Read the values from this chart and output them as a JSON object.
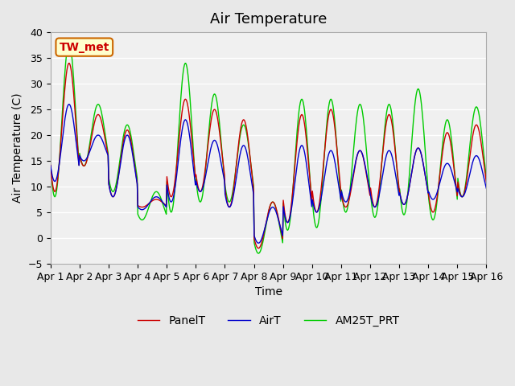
{
  "title": "Air Temperature",
  "ylabel": "Air Temperature (C)",
  "xlabel": "Time",
  "ylim": [
    -5,
    40
  ],
  "yticks": [
    -5,
    0,
    5,
    10,
    15,
    20,
    25,
    30,
    35,
    40
  ],
  "xtick_labels": [
    "Apr 1",
    "Apr 2",
    "Apr 3",
    "Apr 4",
    "Apr 5",
    "Apr 6",
    "Apr 7",
    "Apr 8",
    "Apr 9",
    "Apr 10",
    "Apr 11",
    "Apr 12",
    "Apr 13",
    "Apr 14",
    "Apr 15",
    "Apr 16"
  ],
  "legend_labels": [
    "PanelT",
    "AirT",
    "AM25T_PRT"
  ],
  "legend_colors": [
    "#cc0000",
    "#0000cc",
    "#00cc00"
  ],
  "station_label": "TW_met",
  "station_label_color": "#cc0000",
  "station_box_facecolor": "#ffffcc",
  "station_box_edgecolor": "#cc6600",
  "background_color": "#e8e8e8",
  "plot_bg_color": "#f0f0f0",
  "grid_color": "#ffffff",
  "title_fontsize": 13,
  "axis_label_fontsize": 10,
  "tick_fontsize": 9,
  "panel_peaks": [
    34,
    24,
    21,
    7.5,
    27,
    25,
    23,
    7,
    24,
    25,
    17,
    24,
    17.5,
    20.5,
    22
  ],
  "panel_troughs": [
    9,
    14,
    8,
    6,
    8,
    9,
    6,
    -2,
    3,
    5,
    6,
    6,
    6.5,
    5,
    8
  ],
  "air_peaks": [
    26,
    20,
    20,
    8,
    23,
    19,
    18,
    6,
    18,
    17,
    17,
    17,
    17.5,
    14.5,
    16
  ],
  "air_troughs": [
    11,
    15,
    8,
    5.5,
    7,
    9,
    6,
    -1,
    3,
    5,
    7,
    6,
    6.5,
    7.5,
    8
  ],
  "am25_peaks": [
    38,
    26,
    22,
    9,
    34,
    28,
    22,
    7,
    27,
    27,
    26,
    26,
    29,
    23,
    25.5
  ],
  "am25_troughs": [
    8,
    14,
    9,
    3.5,
    5,
    7,
    7,
    -3,
    1.5,
    2,
    5,
    4,
    4.5,
    3.5,
    8
  ]
}
